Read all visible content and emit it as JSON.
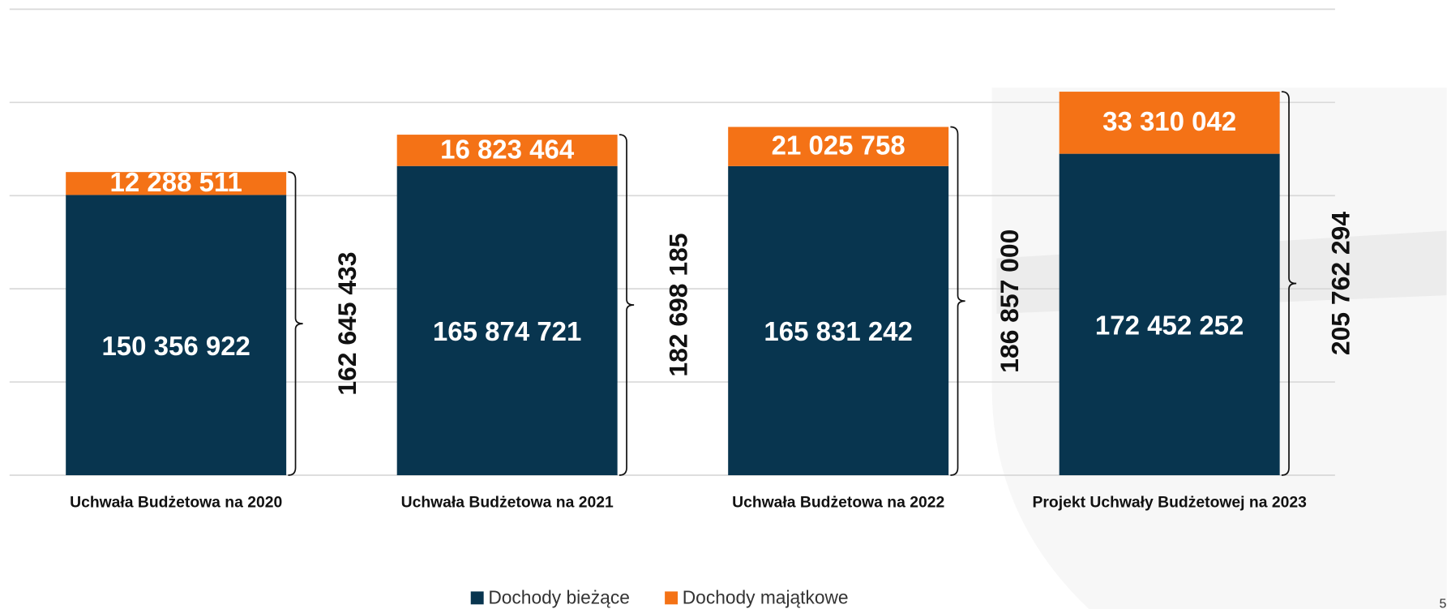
{
  "chart_data": {
    "type": "stacked_bar",
    "categories": [
      "Uchwała Budżetowa na 2020",
      "Uchwała Budżetowa na 2021",
      "Uchwała Budżetowa na 2022",
      "Projekt Uchwały Budżetowej na 2023"
    ],
    "series": [
      {
        "name": "Dochody bieżące",
        "color": "#08354f",
        "values": [
          150356922,
          165874721,
          165831242,
          172452252
        ],
        "value_labels": [
          "150 356 922",
          "165 874 721",
          "165 831 242",
          "172 452 252"
        ]
      },
      {
        "name": "Dochody majątkowe",
        "color": "#f47216",
        "values": [
          12288511,
          16823464,
          21025758,
          33310042
        ],
        "value_labels": [
          "12 288 511",
          "16 823 464",
          "21 025 758",
          "33 310 042"
        ]
      }
    ],
    "totals": {
      "values": [
        162645433,
        182698185,
        186857000,
        205762294
      ],
      "value_labels": [
        "162 645 433",
        "182 698 185",
        "186 857 000",
        "205 762 294"
      ]
    },
    "ylim": [
      0,
      250000000
    ],
    "yticks": [
      0,
      50000000,
      100000000,
      150000000,
      200000000,
      250000000
    ],
    "grid": true,
    "legend": "bottom",
    "page_number": "5"
  }
}
